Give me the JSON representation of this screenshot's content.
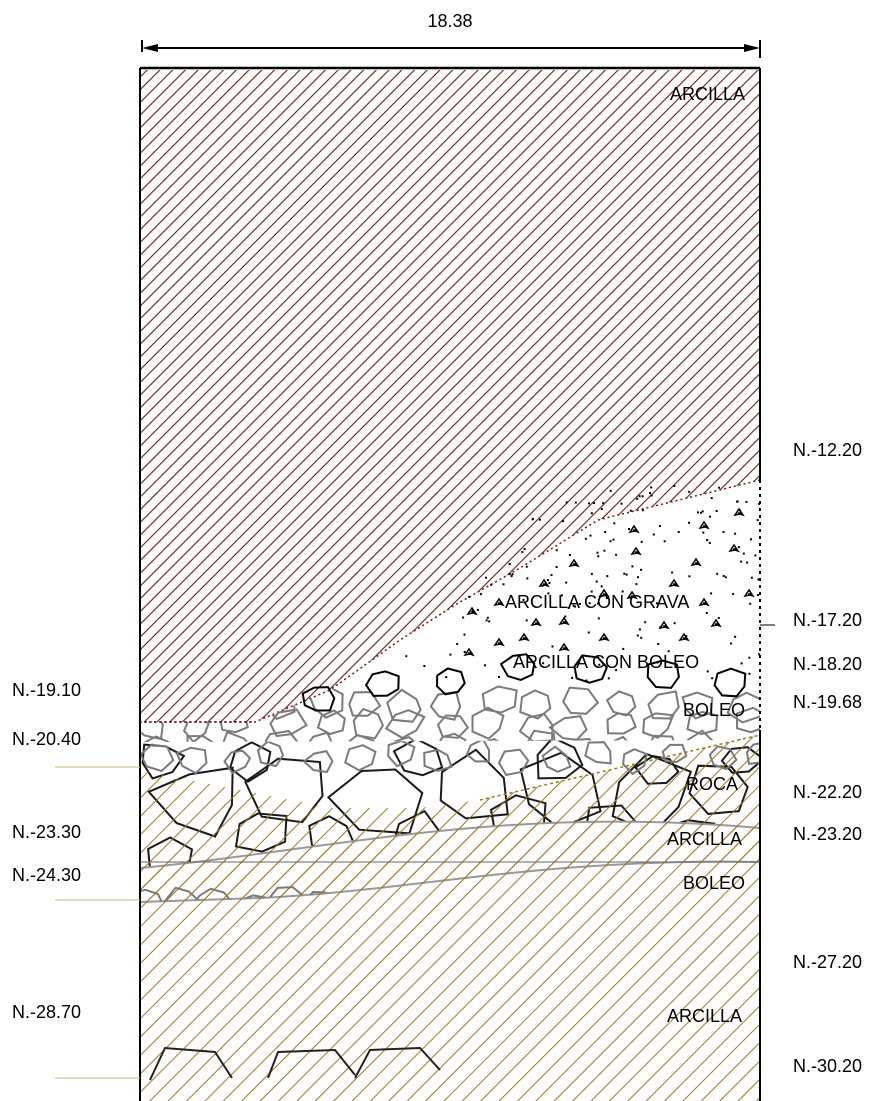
{
  "dimension": {
    "value": "18.38"
  },
  "colors": {
    "clay_top": "#6b1a10",
    "clay_lower": "#9a7a1e",
    "boulder_stroke": "#7a7a7a",
    "rock_stroke": "#1a1a1a",
    "gravel_dot": "#000000"
  },
  "layers": {
    "arcilla_top": "ARCILLA",
    "arcilla_con_grava": "ARCILLA CON GRAVA",
    "arcilla_con_boleo": "ARCILLA CON BOLEO",
    "boleo_upper": "BOLEO",
    "roca": "ROCA",
    "arcilla_mid": "ARCILLA",
    "boleo_lower": "BOLEO",
    "arcilla_bottom": "ARCILLA"
  },
  "levels_right": {
    "n1": "N.-12.20",
    "n2": "N.-17.20",
    "n3": "N.-18.20",
    "n4": "N.-19.68",
    "n5": "N.-22.20",
    "n6": "N.-23.20",
    "n7": "N.-27.20",
    "n8": "N.-30.20"
  },
  "levels_left": {
    "n1": "N.-19.10",
    "n2": "N.-20.40",
    "n3": "N.-23.30",
    "n4": "N.-24.30",
    "n5": "N.-28.70"
  }
}
